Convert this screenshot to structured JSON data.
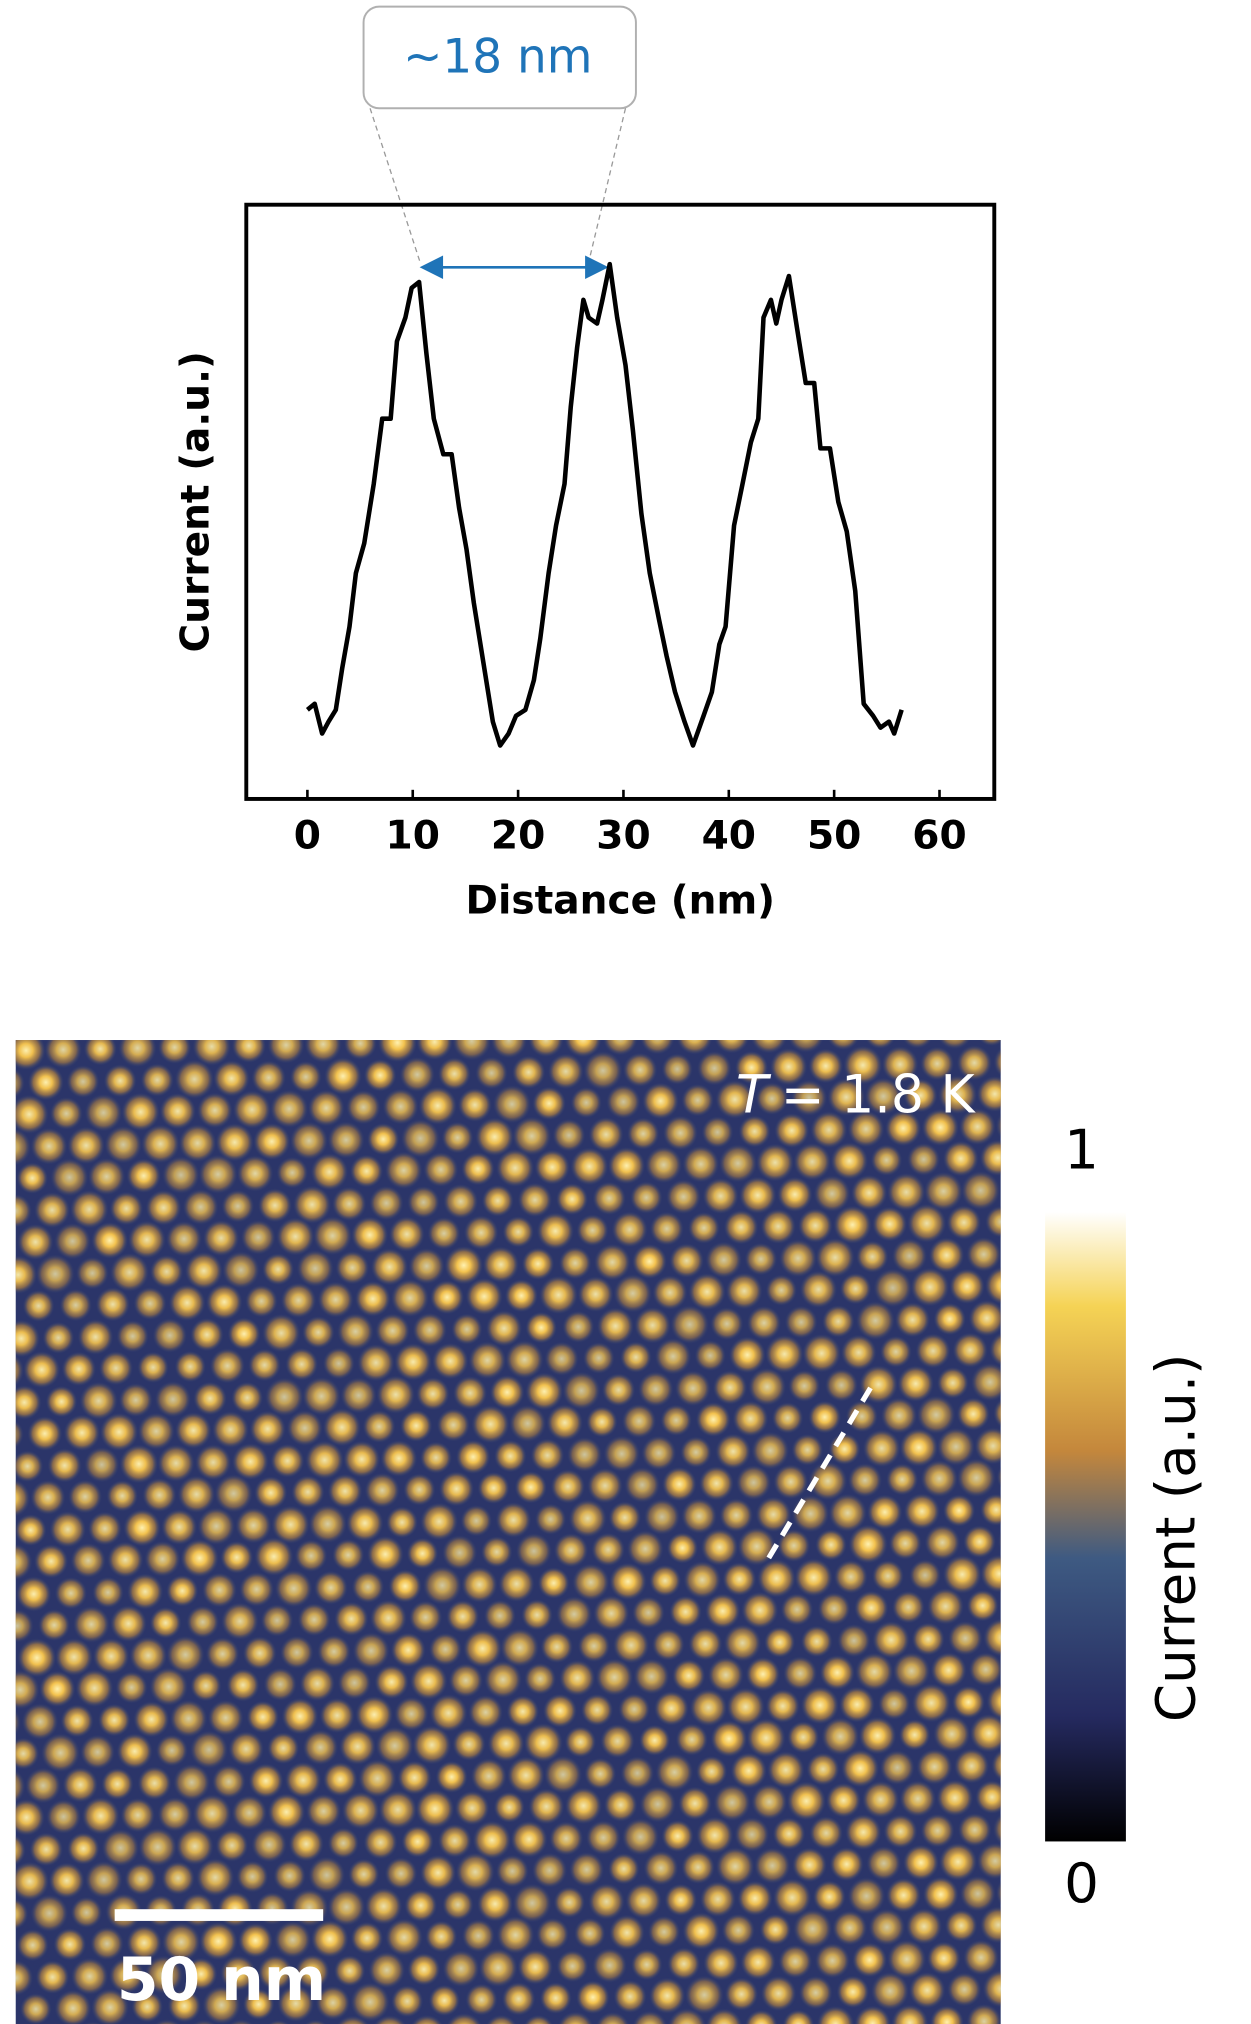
{
  "chart_data": {
    "type": "line",
    "x_label": "Distance (nm)",
    "y_label": "Current (a.u.)",
    "annotation": "~18 nm",
    "xlim": [
      -5.8,
      65.2
    ],
    "xticks": [
      0,
      10,
      20,
      30,
      40,
      50,
      60
    ],
    "ylim": [
      0,
      1
    ],
    "color": "#000000",
    "x": [
      0.0,
      0.7,
      1.4,
      2.0,
      2.7,
      3.3,
      4.0,
      4.6,
      5.4,
      6.3,
      7.1,
      7.9,
      8.5,
      9.3,
      9.9,
      10.6,
      11.3,
      12.0,
      12.9,
      13.7,
      14.4,
      15.1,
      15.8,
      16.7,
      17.6,
      18.3,
      19.1,
      19.8,
      20.7,
      21.5,
      22.1,
      22.9,
      23.6,
      24.4,
      25.0,
      25.6,
      26.2,
      26.7,
      27.5,
      28.0,
      28.7,
      29.4,
      30.2,
      30.9,
      31.7,
      32.5,
      33.4,
      34.1,
      34.9,
      35.8,
      36.6,
      37.6,
      38.4,
      39.1,
      39.7,
      40.5,
      41.3,
      42.1,
      42.8,
      43.3,
      44.0,
      44.5,
      45.0,
      45.7,
      46.5,
      47.3,
      48.1,
      48.7,
      49.6,
      50.4,
      51.2,
      52.0,
      52.8,
      53.7,
      54.4,
      55.2,
      55.7,
      56.4
    ],
    "values": [
      0.15,
      0.16,
      0.11,
      0.13,
      0.15,
      0.22,
      0.29,
      0.38,
      0.43,
      0.53,
      0.64,
      0.64,
      0.77,
      0.81,
      0.86,
      0.87,
      0.75,
      0.64,
      0.58,
      0.58,
      0.49,
      0.42,
      0.33,
      0.23,
      0.13,
      0.09,
      0.11,
      0.14,
      0.15,
      0.2,
      0.27,
      0.38,
      0.46,
      0.53,
      0.66,
      0.76,
      0.84,
      0.81,
      0.8,
      0.84,
      0.9,
      0.81,
      0.73,
      0.62,
      0.48,
      0.38,
      0.3,
      0.24,
      0.18,
      0.13,
      0.09,
      0.14,
      0.18,
      0.26,
      0.29,
      0.46,
      0.53,
      0.6,
      0.64,
      0.81,
      0.84,
      0.8,
      0.84,
      0.88,
      0.79,
      0.7,
      0.7,
      0.59,
      0.59,
      0.5,
      0.45,
      0.35,
      0.16,
      0.14,
      0.12,
      0.13,
      0.11,
      0.15
    ]
  },
  "image": {
    "temperature_symbol": "T",
    "temperature_text": "= 1.8 K",
    "scale_bar": "50 nm",
    "colorbar": {
      "label": "Current (a.u.)",
      "ticks": [
        0,
        1
      ],
      "lim": [
        0,
        1
      ]
    }
  }
}
